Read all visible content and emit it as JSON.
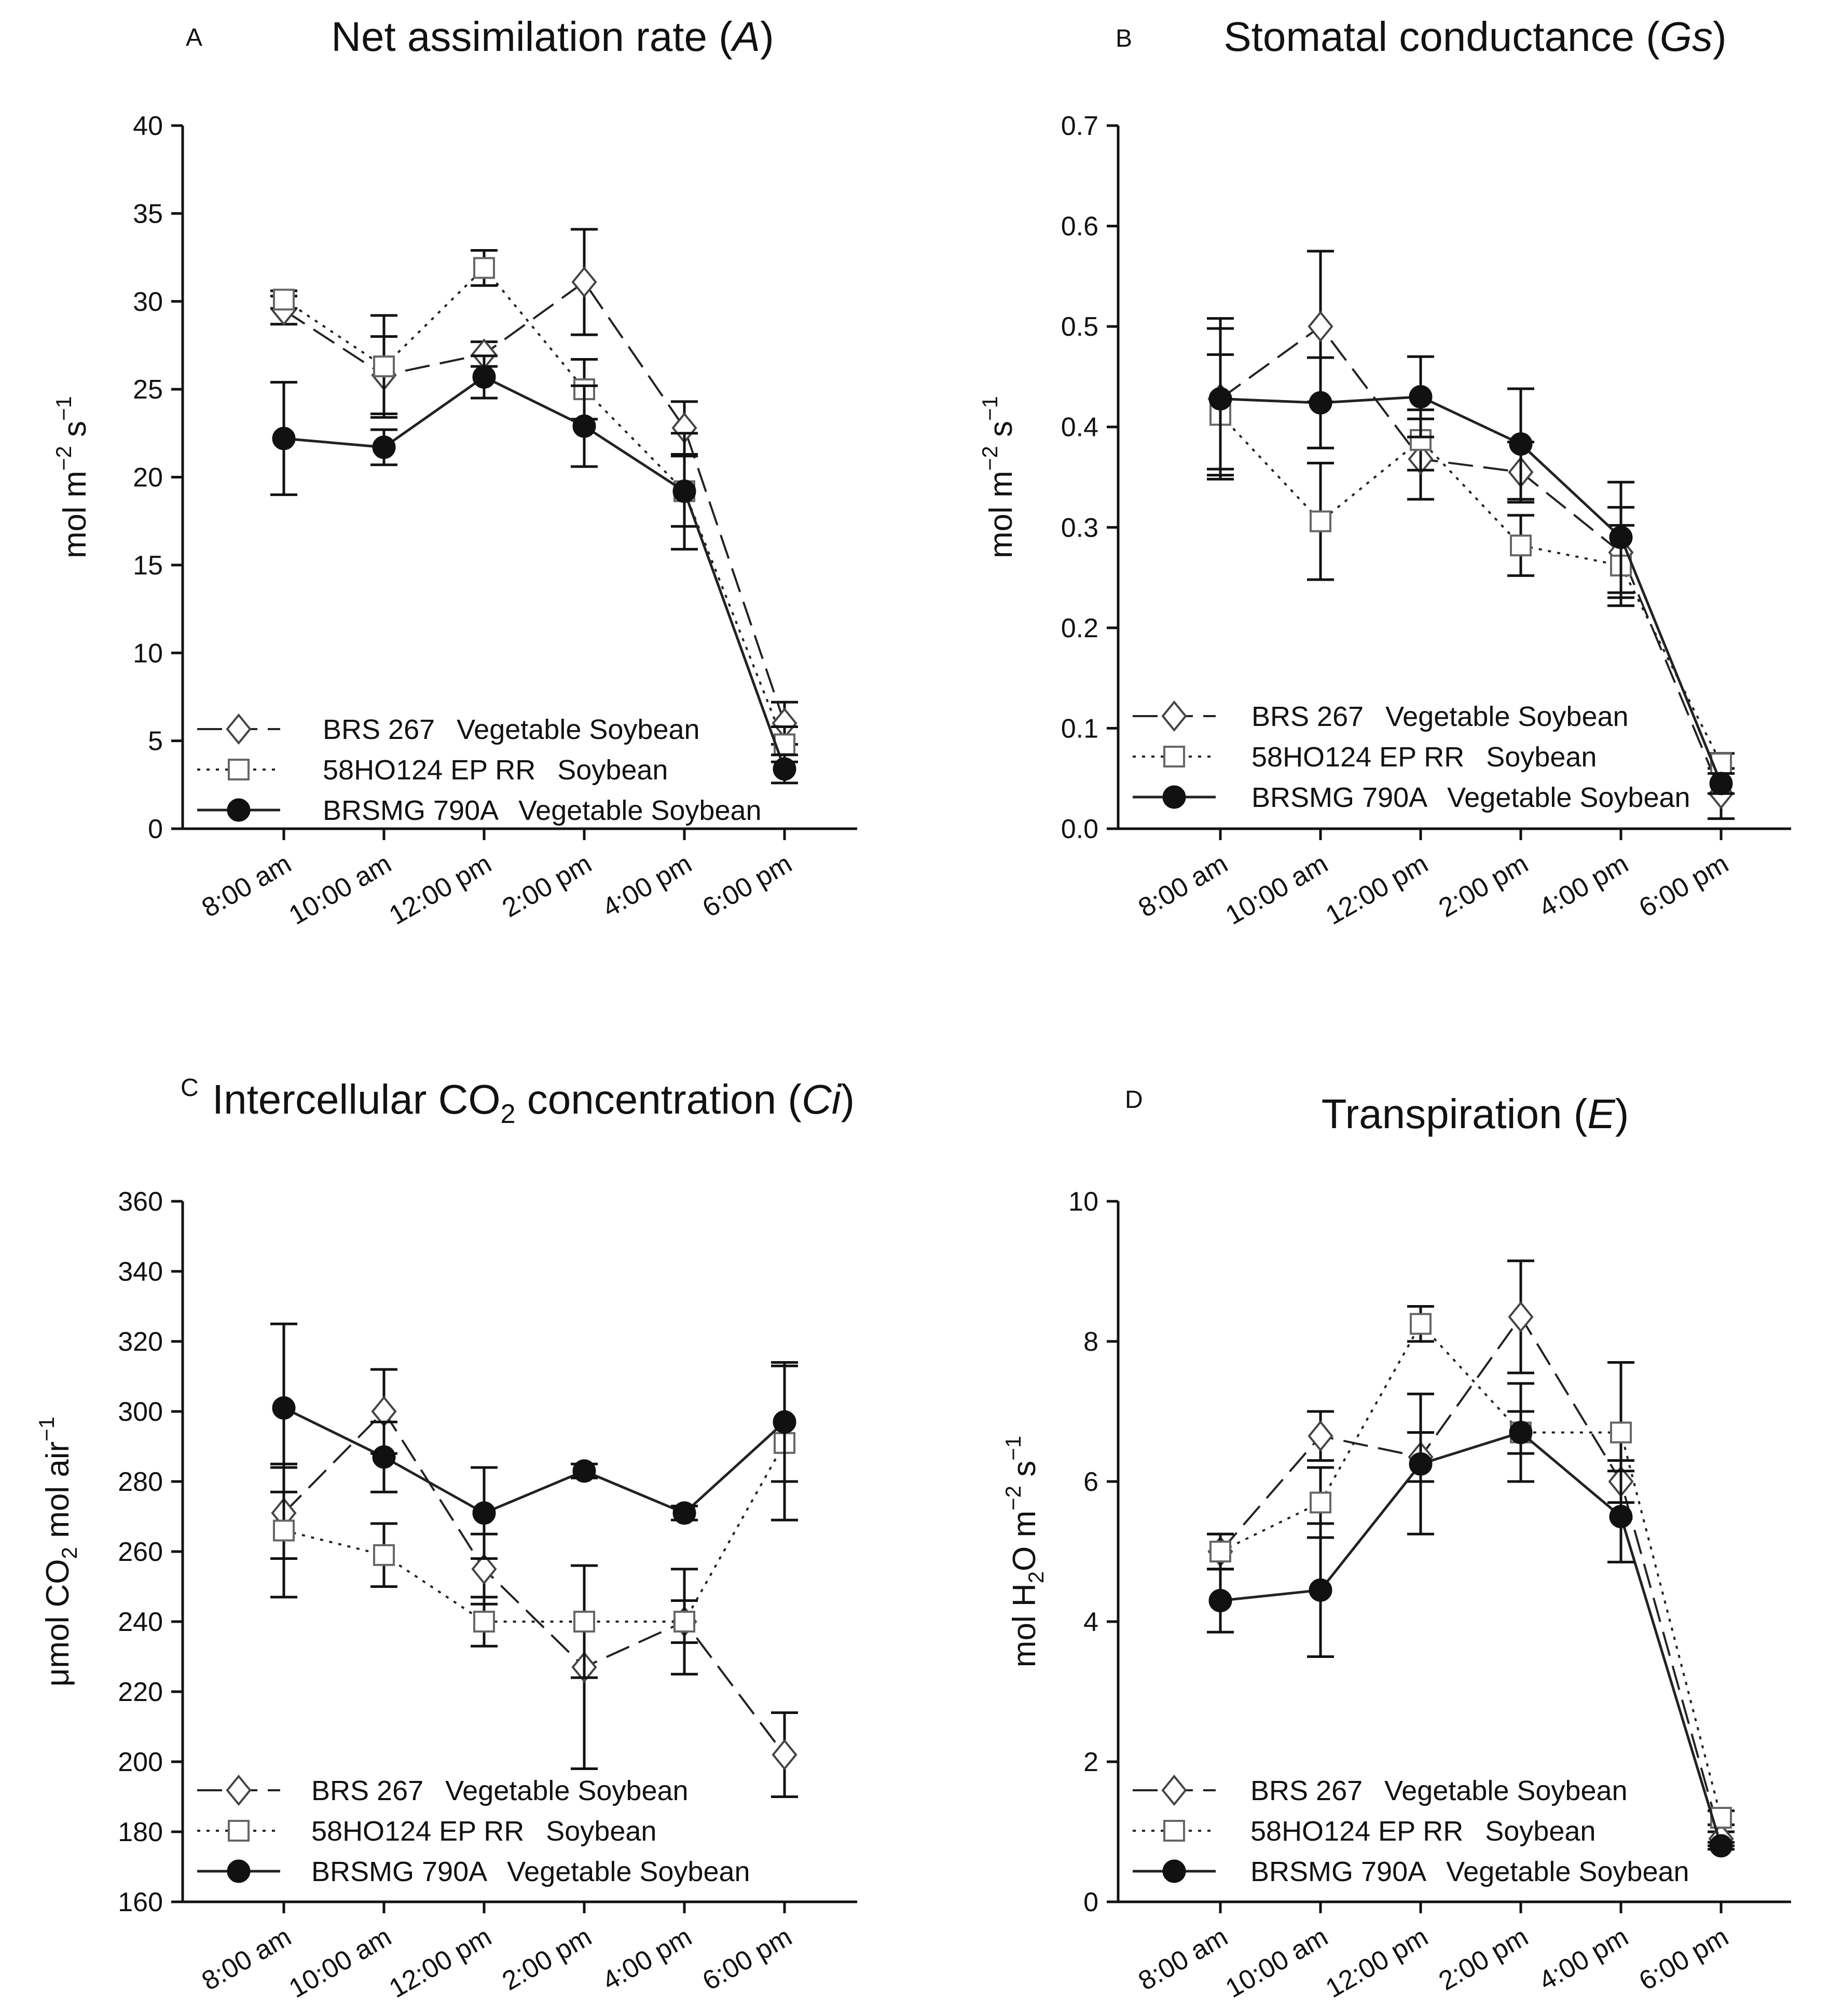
{
  "figure": {
    "x_categories": [
      "8:00 am",
      "10:00 am",
      "12:00 pm",
      "2:00 pm",
      "4:00 pm",
      "6:00 pm"
    ],
    "legend_entries": [
      {
        "cultivar": "BRS 267",
        "type": "Vegetable Soybean",
        "style": "dashed",
        "marker": "open-diamond"
      },
      {
        "cultivar": "58HO124 EP RR",
        "type": "Soybean",
        "style": "dotted",
        "marker": "open-square"
      },
      {
        "cultivar": "BRSMG 790A",
        "type": "Vegetable Soybean",
        "style": "solid",
        "marker": "filled-circle"
      }
    ]
  },
  "chart_data": [
    {
      "panel": "A",
      "type": "line",
      "title": "Net assimilation rate (",
      "title_symbol": "A",
      "title_end": ")",
      "ylabel": "mol m",
      "ylabel_exp1": "−2",
      "ylabel_mid": " s",
      "ylabel_exp2": "−1",
      "xlabel": "",
      "ylim": [
        0,
        40
      ],
      "yticks": [
        "0",
        "5",
        "10",
        "15",
        "20",
        "25",
        "30",
        "35",
        "40"
      ],
      "categories": [
        "8:00 am",
        "10:00 am",
        "12:00 pm",
        "2:00 pm",
        "4:00 pm",
        "6:00 pm"
      ],
      "series": [
        {
          "name": "BRS 267  Vegetable Soybean",
          "values": [
            29.5,
            25.8,
            27.0,
            31.1,
            22.8,
            6.0
          ],
          "errors": [
            0.8,
            2.2,
            0.7,
            3.0,
            1.5,
            1.2
          ]
        },
        {
          "name": "58HO124 EP RR  Soybean",
          "values": [
            30.1,
            26.3,
            31.9,
            25.0,
            19.2,
            4.8
          ],
          "errors": [
            0.5,
            2.9,
            1.0,
            1.7,
            2.0,
            1.0
          ]
        },
        {
          "name": "BRSMG 790A  Vegetable Soybean",
          "values": [
            22.2,
            21.7,
            25.7,
            22.9,
            19.2,
            3.4
          ],
          "errors": [
            3.2,
            1.0,
            1.2,
            2.3,
            3.3,
            0.8
          ]
        }
      ]
    },
    {
      "panel": "B",
      "type": "line",
      "title": "Stomatal conductance (",
      "title_symbol": "Gs",
      "title_end": ")",
      "ylabel": "mol m",
      "ylabel_exp1": "−2",
      "ylabel_mid": " s",
      "ylabel_exp2": "−1",
      "xlabel": "",
      "ylim": [
        0,
        0.7
      ],
      "yticks": [
        "0.0",
        "0.1",
        "0.2",
        "0.3",
        "0.4",
        "0.5",
        "0.6",
        "0.7"
      ],
      "categories": [
        "8:00 am",
        "10:00 am",
        "12:00 pm",
        "2:00 pm",
        "4:00 pm",
        "6:00 pm"
      ],
      "series": [
        {
          "name": "BRS 267  Vegetable Soybean",
          "values": [
            0.428,
            0.5,
            0.368,
            0.355,
            0.275,
            0.035
          ],
          "errors": [
            0.08,
            0.075,
            0.04,
            0.03,
            0.045,
            0.025
          ]
        },
        {
          "name": "58HO124 EP RR  Soybean",
          "values": [
            0.412,
            0.306,
            0.387,
            0.282,
            0.262,
            0.065
          ],
          "errors": [
            0.06,
            0.058,
            0.03,
            0.03,
            0.04,
            0.01
          ]
        },
        {
          "name": "BRSMG 790A  Vegetable Soybean",
          "values": [
            0.428,
            0.424,
            0.43,
            0.383,
            0.29,
            0.045
          ],
          "errors": [
            0.07,
            0.045,
            0.04,
            0.055,
            0.055,
            0.01
          ]
        }
      ]
    },
    {
      "panel": "C",
      "type": "line",
      "title": "Intercellular CO",
      "title_sub": "2",
      "title_mid": " concentration (",
      "title_symbol": "Ci",
      "title_end": ")",
      "ylabel": "μmol CO",
      "ylabel_sub": "2",
      "ylabel_mid": " mol air",
      "ylabel_exp": "−1",
      "xlabel": "",
      "ylim": [
        160,
        360
      ],
      "yticks": [
        "160",
        "180",
        "200",
        "220",
        "240",
        "260",
        "280",
        "300",
        "320",
        "340",
        "360"
      ],
      "categories": [
        "8:00 am",
        "10:00 am",
        "12:00 pm",
        "2:00 pm",
        "4:00 pm",
        "6:00 pm"
      ],
      "series": [
        {
          "name": "BRS 267  Vegetable Soybean",
          "values": [
            271,
            300,
            255,
            227,
            240,
            202
          ],
          "errors": [
            13,
            12,
            10,
            29,
            15,
            12
          ]
        },
        {
          "name": "58HO124 EP RR  Soybean",
          "values": [
            266,
            259,
            240,
            240,
            240,
            291
          ],
          "errors": [
            19,
            9,
            7,
            16,
            6,
            22
          ]
        },
        {
          "name": "BRSMG 790A  Vegetable Soybean",
          "values": [
            301,
            287,
            271,
            283,
            271,
            297
          ],
          "errors": [
            24,
            10,
            13,
            2,
            2,
            17
          ]
        }
      ]
    },
    {
      "panel": "D",
      "type": "line",
      "title": "Transpiration (",
      "title_symbol": "E",
      "title_end": ")",
      "ylabel": "mol H",
      "ylabel_sub": "2",
      "ylabel_mid": "O m",
      "ylabel_exp1": "−2",
      "ylabel_mid2": " s",
      "ylabel_exp2": "−1",
      "xlabel": "",
      "ylim": [
        0,
        10
      ],
      "yticks": [
        "0",
        "2",
        "4",
        "6",
        "8",
        "10"
      ],
      "categories": [
        "8:00 am",
        "10:00 am",
        "12:00 pm",
        "2:00 pm",
        "4:00 pm",
        "6:00 pm"
      ],
      "series": [
        {
          "name": "BRS 267  Vegetable Soybean",
          "values": [
            5.0,
            6.65,
            6.35,
            8.35,
            6.0,
            0.9
          ],
          "errors": [
            0.25,
            0.35,
            0.35,
            0.8,
            0.3,
            0.1
          ]
        },
        {
          "name": "58HO124 EP RR  Soybean",
          "values": [
            5.0,
            5.7,
            8.25,
            6.7,
            6.7,
            1.2
          ],
          "errors": [
            0.25,
            0.5,
            0.25,
            0.3,
            1.0,
            0.1
          ]
        },
        {
          "name": "BRSMG 790A  Vegetable Soybean",
          "values": [
            4.3,
            4.45,
            6.25,
            6.7,
            5.5,
            0.8
          ],
          "errors": [
            0.45,
            0.95,
            1.0,
            0.7,
            0.65,
            0.05
          ]
        }
      ]
    }
  ]
}
